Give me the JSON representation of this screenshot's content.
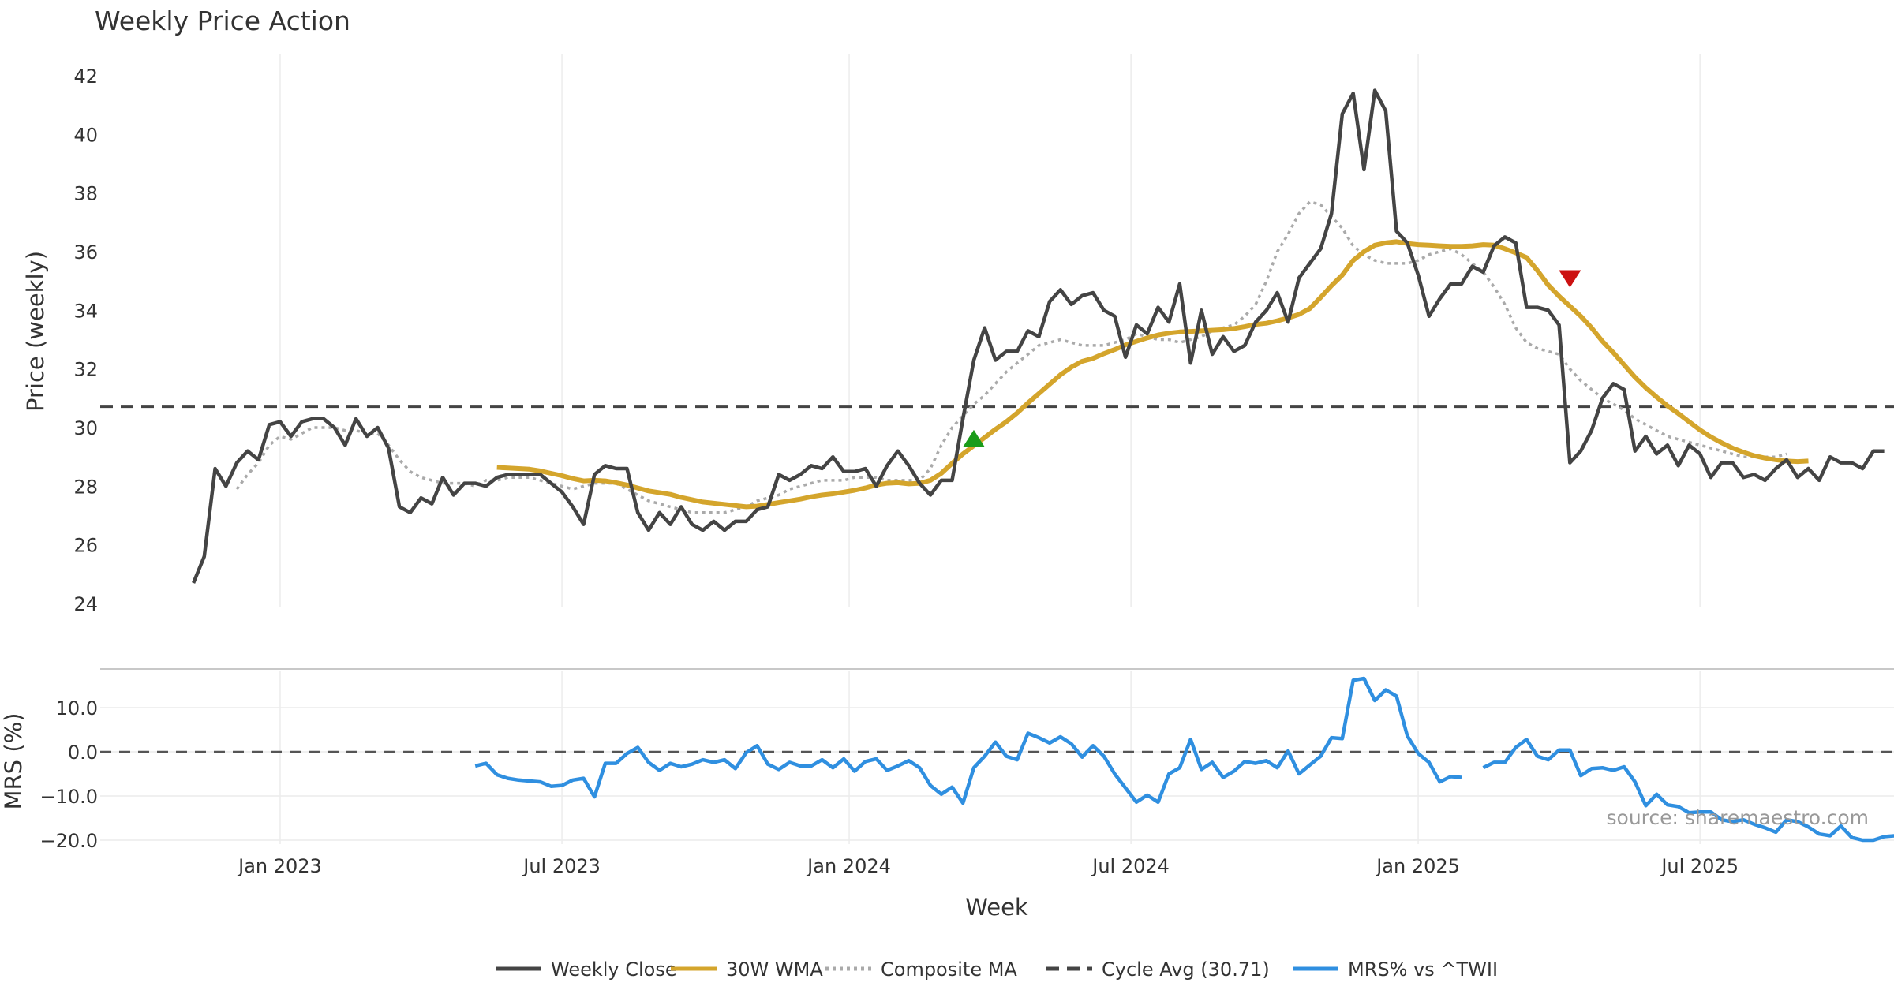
{
  "chart_data": {
    "type": "line",
    "title": "Weekly Price Action",
    "xlabel": "Week",
    "source": "source: sharemaestro.com",
    "x_ticks": [
      {
        "label": "Jan 2023",
        "week": 8
      },
      {
        "label": "Jul 2023",
        "week": 34
      },
      {
        "label": "Jan 2024",
        "week": 60.5
      },
      {
        "label": "Jul 2024",
        "week": 86.5
      },
      {
        "label": "Jan 2025",
        "week": 113
      },
      {
        "label": "Jul 2025",
        "week": 139
      }
    ],
    "x_range": [
      -8.6,
      156.9
    ],
    "price_panel": {
      "ylabel": "Price (weekly)",
      "ylim": [
        24,
        42.5
      ],
      "yticks": [
        "24",
        "26",
        "28",
        "30",
        "32",
        "34",
        "36",
        "38",
        "40",
        "42"
      ],
      "cycle_avg": 30.71,
      "weekly_close": [
        24.7,
        25.6,
        28.6,
        28.0,
        28.8,
        29.2,
        28.9,
        30.1,
        30.2,
        29.7,
        30.2,
        30.3,
        30.3,
        30.0,
        29.4,
        30.3,
        29.7,
        30.0,
        29.3,
        27.3,
        27.1,
        27.6,
        27.4,
        28.3,
        27.7,
        28.1,
        28.1,
        28.0,
        28.3,
        28.4,
        28.4,
        28.4,
        28.4,
        28.1,
        27.8,
        27.3,
        26.7,
        28.4,
        28.7,
        28.6,
        28.6,
        27.1,
        26.5,
        27.1,
        26.7,
        27.3,
        26.7,
        26.5,
        26.8,
        26.5,
        26.8,
        26.8,
        27.2,
        27.3,
        28.4,
        28.2,
        28.4,
        28.7,
        28.6,
        29.0,
        28.5,
        28.5,
        28.6,
        28.0,
        28.7,
        29.2,
        28.7,
        28.1,
        27.7,
        28.2,
        28.2,
        30.3,
        32.3,
        33.4,
        32.3,
        32.6,
        32.6,
        33.3,
        33.1,
        34.3,
        34.7,
        34.2,
        34.5,
        34.6,
        34.0,
        33.8,
        32.4,
        33.5,
        33.2,
        34.1,
        33.6,
        34.9,
        32.2,
        34.0,
        32.5,
        33.1,
        32.6,
        32.8,
        33.6,
        34.0,
        34.6,
        33.6,
        35.1,
        35.6,
        36.1,
        37.3,
        40.7,
        41.4,
        38.8,
        41.5,
        40.8,
        36.7,
        36.3,
        35.2,
        33.8,
        34.4,
        34.9,
        34.9,
        35.5,
        35.3,
        36.2,
        36.5,
        36.3,
        34.1,
        34.1,
        34.0,
        33.5,
        28.8,
        29.2,
        29.9,
        31.0,
        31.5,
        31.3,
        29.2,
        29.7,
        29.1,
        29.4,
        28.7,
        29.4,
        29.1,
        28.3,
        28.8,
        28.8,
        28.3,
        28.4,
        28.2,
        28.6,
        28.9,
        28.3,
        28.6,
        28.2,
        29.0,
        28.8,
        28.8,
        28.6,
        29.2,
        29.2
      ],
      "wma_30w": {
        "start_week": 28,
        "values": [
          28.64,
          28.62,
          28.6,
          28.58,
          28.52,
          28.44,
          28.36,
          28.26,
          28.18,
          28.2,
          28.18,
          28.12,
          28.04,
          27.94,
          27.84,
          27.78,
          27.72,
          27.62,
          27.54,
          27.46,
          27.42,
          27.38,
          27.34,
          27.3,
          27.32,
          27.38,
          27.44,
          27.5,
          27.56,
          27.64,
          27.7,
          27.74,
          27.8,
          27.86,
          27.94,
          28.04,
          28.1,
          28.12,
          28.08,
          28.1,
          28.2,
          28.44,
          28.78,
          29.1,
          29.38,
          29.66,
          29.94,
          30.2,
          30.5,
          30.84,
          31.16,
          31.48,
          31.8,
          32.06,
          32.26,
          32.36,
          32.52,
          32.66,
          32.82,
          32.94,
          33.06,
          33.16,
          33.22,
          33.26,
          33.28,
          33.3,
          33.32,
          33.34,
          33.38,
          33.44,
          33.52,
          33.56,
          33.64,
          33.74,
          33.86,
          34.06,
          34.44,
          34.84,
          35.2,
          35.7,
          36.0,
          36.22,
          36.3,
          36.34,
          36.28,
          36.24,
          36.22,
          36.2,
          36.18,
          36.18,
          36.2,
          36.24,
          36.22,
          36.1,
          35.96,
          35.8,
          35.36,
          34.86,
          34.48,
          34.14,
          33.8,
          33.4,
          32.94,
          32.56,
          32.14,
          31.72,
          31.36,
          31.04,
          30.74,
          30.48,
          30.2,
          29.92,
          29.68,
          29.48,
          29.3,
          29.16,
          29.04,
          28.96,
          28.9,
          28.86,
          28.84,
          28.86
        ]
      },
      "composite_ma": {
        "start_week": 4,
        "values": [
          27.9,
          28.4,
          28.8,
          29.4,
          29.7,
          29.6,
          29.8,
          30.0,
          30.0,
          30.0,
          29.9,
          29.9,
          29.8,
          29.8,
          29.4,
          28.9,
          28.5,
          28.3,
          28.2,
          28.1,
          28.1,
          28.1,
          28.0,
          28.2,
          28.2,
          28.3,
          28.3,
          28.3,
          28.2,
          28.1,
          28.0,
          27.9,
          28.0,
          28.1,
          28.1,
          28.1,
          27.9,
          27.7,
          27.5,
          27.4,
          27.3,
          27.2,
          27.1,
          27.1,
          27.1,
          27.1,
          27.2,
          27.3,
          27.5,
          27.6,
          27.7,
          27.9,
          28.0,
          28.1,
          28.2,
          28.2,
          28.2,
          28.3,
          28.3,
          28.3,
          28.2,
          28.2,
          28.2,
          28.2,
          28.6,
          29.4,
          30.0,
          30.4,
          30.8,
          31.1,
          31.5,
          31.9,
          32.2,
          32.5,
          32.8,
          32.9,
          33.0,
          32.9,
          32.8,
          32.8,
          32.8,
          32.9,
          33.0,
          33.2,
          33.1,
          33.0,
          33.0,
          32.9,
          33.0,
          33.1,
          33.3,
          33.4,
          33.5,
          33.8,
          34.2,
          35.0,
          36.0,
          36.6,
          37.3,
          37.7,
          37.6,
          37.2,
          36.8,
          36.2,
          35.9,
          35.7,
          35.6,
          35.6,
          35.6,
          35.7,
          35.9,
          36.0,
          36.1,
          35.9,
          35.6,
          35.3,
          34.8,
          34.2,
          33.4,
          32.9,
          32.7,
          32.6,
          32.5,
          32.0,
          31.6,
          31.3,
          31.0,
          30.8,
          30.6,
          30.3,
          30.1,
          29.9,
          29.7,
          29.6,
          29.5,
          29.4,
          29.3,
          29.2,
          29.1,
          29.0,
          29.0,
          29.0,
          29.0,
          29.1
        ]
      },
      "signals": [
        {
          "type": "buy",
          "week": 72,
          "price": 29.6,
          "color": "#1a9c1a"
        },
        {
          "type": "sell",
          "week": 127,
          "price": 35.1,
          "color": "#cc1111"
        }
      ]
    },
    "mrs_panel": {
      "ylabel": "MRS (%)",
      "ylim": [
        -20.5,
        19
      ],
      "yticks": [
        "−20.0",
        "−10.0",
        "0.0",
        "10.0"
      ],
      "segments": [
        {
          "start_week": 26,
          "values": [
            -3.2,
            -2.6,
            -5.2,
            -6.0,
            -6.4,
            -6.6,
            -6.8,
            -7.8,
            -7.6,
            -6.4,
            -6.0,
            -10.2,
            -2.6,
            -2.6,
            -0.4,
            1.0,
            -2.4,
            -4.2,
            -2.6,
            -3.4,
            -2.8,
            -1.8,
            -2.4,
            -1.8,
            -3.8,
            -0.2,
            1.4,
            -2.8,
            -4.0,
            -2.4,
            -3.2,
            -3.2,
            -1.8,
            -3.6,
            -1.6,
            -4.4,
            -2.2,
            -1.6,
            -4.2,
            -3.2,
            -2.0,
            -3.6,
            -7.6,
            -9.6,
            -8.0,
            -11.6,
            -3.6,
            -1.0,
            2.2,
            -1.0,
            -1.8,
            4.2,
            3.2,
            2.0,
            3.4,
            1.8,
            -1.2,
            1.4,
            -1.0,
            -5.0,
            -8.2,
            -11.4,
            -9.8,
            -11.4,
            -5.0,
            -3.6,
            2.8,
            -4.0,
            -2.4,
            -5.8,
            -4.4,
            -2.2,
            -2.6,
            -2.0,
            -3.6,
            0.2,
            -5.0,
            -3.0,
            -1.0,
            3.2,
            3.0,
            16.2,
            16.6,
            11.6,
            14.0,
            12.6,
            3.6,
            -0.4,
            -2.4,
            -6.8,
            -5.6,
            -5.8
          ]
        },
        {
          "start_week": 119,
          "values": [
            -3.6,
            -2.4,
            -2.4,
            1.0,
            2.8,
            -1.0,
            -1.8,
            0.4,
            0.4,
            -5.4,
            -3.8,
            -3.6,
            -4.2,
            -3.4,
            -6.8,
            -12.2,
            -9.6,
            -12.0,
            -12.4,
            -13.8,
            -13.6,
            -13.6,
            -15.4,
            -15.8,
            -15.4,
            -16.4,
            -17.2,
            -18.2,
            -15.4,
            -15.8,
            -17.0,
            -18.6,
            -19.0,
            -16.8,
            -19.4,
            -20.0,
            -20.0,
            -19.2,
            -19.0
          ]
        }
      ]
    },
    "legend": [
      {
        "label": "Weekly Close",
        "color": "#444444",
        "style": "solid"
      },
      {
        "label": "30W WMA",
        "color": "#d4a52c",
        "style": "solid"
      },
      {
        "label": "Composite MA",
        "color": "#aaaaaa",
        "style": "dotted"
      },
      {
        "label": "Cycle Avg (30.71)",
        "color": "#444444",
        "style": "dashed"
      },
      {
        "label": "MRS% vs ^TWII",
        "color": "#2f8fe0",
        "style": "solid"
      }
    ]
  }
}
